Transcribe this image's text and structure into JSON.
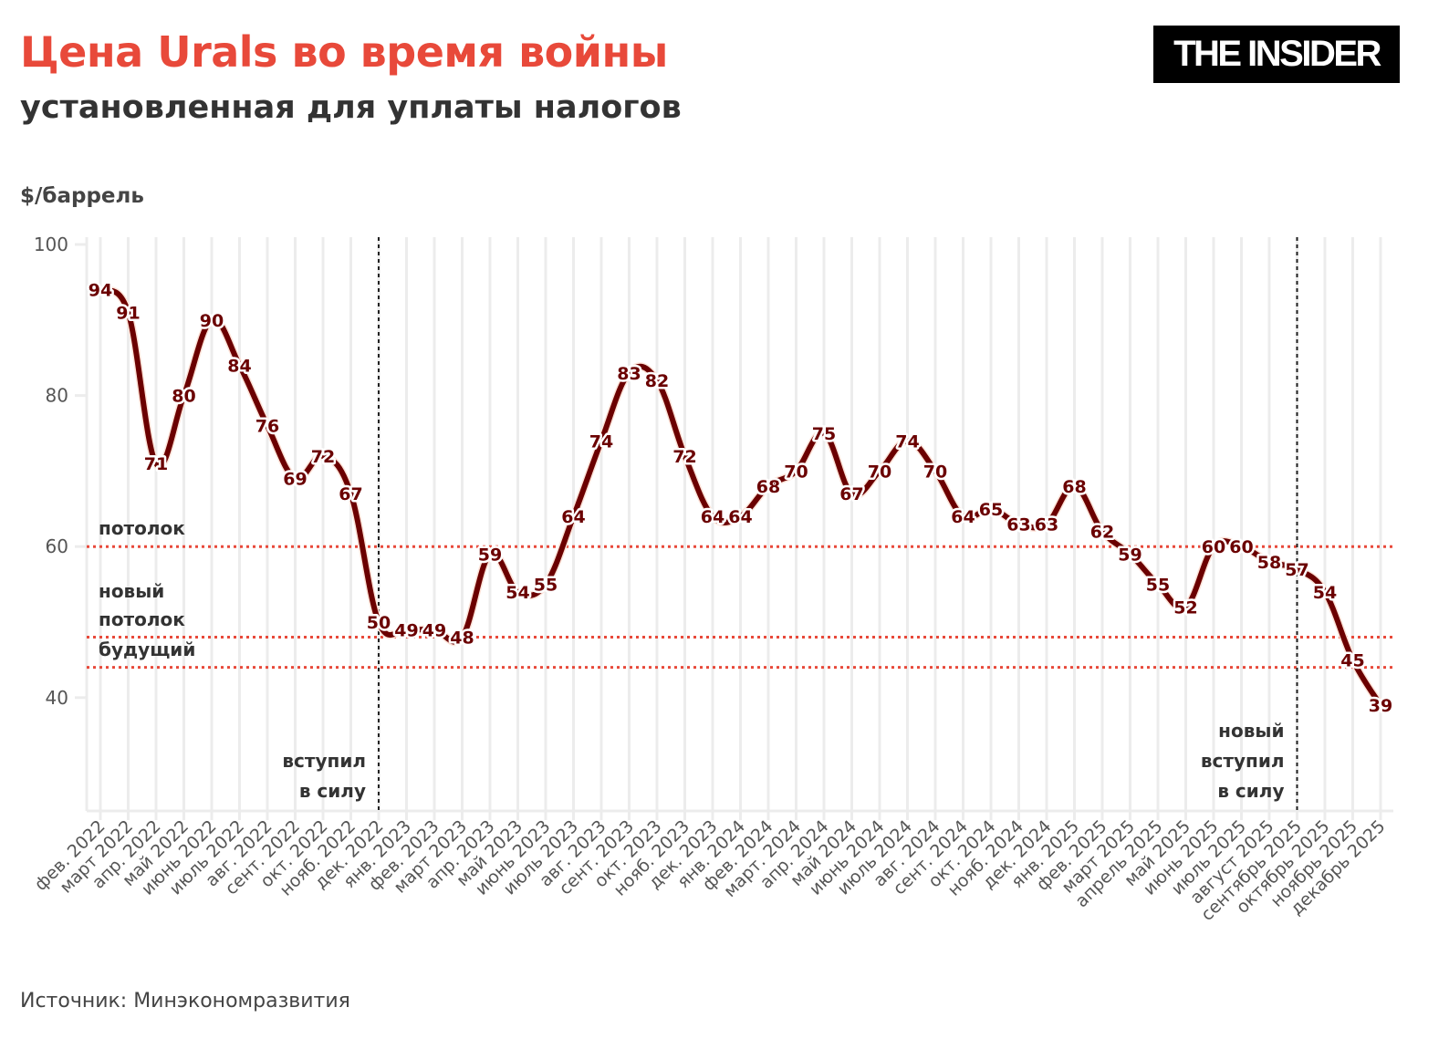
{
  "header": {
    "title": "Цена Urals во время войны",
    "subtitle": "установленная для уплаты налогов",
    "logo": "THE INSIDER"
  },
  "footer": {
    "source": "Источник: Минэкономразвития"
  },
  "chart_data": {
    "type": "line",
    "title": "Цена Urals во время войны",
    "subtitle": "установленная для уплаты налогов",
    "ylabel": "$/баррель",
    "xlabel": "",
    "ylim": [
      25,
      100
    ],
    "yticks": [
      40,
      60,
      80,
      100
    ],
    "grid": true,
    "line_color": "#6b0000",
    "categories": [
      "фев. 2022",
      "март 2022",
      "апр. 2022",
      "май 2022",
      "июнь 2022",
      "июль 2022",
      "авг. 2022",
      "сент. 2022",
      "окт. 2022",
      "нояб. 2022",
      "дек. 2022",
      "янв. 2023",
      "фев. 2023",
      "март 2023",
      "апр. 2023",
      "май 2023",
      "июнь 2023",
      "июль 2023",
      "авг. 2023",
      "сент. 2023",
      "окт. 2023",
      "нояб. 2023",
      "дек. 2023",
      "янв. 2024",
      "фев. 2024",
      "март. 2024",
      "апр. 2024",
      "май 2024",
      "июнь 2024",
      "июль 2024",
      "авг. 2024",
      "сент. 2024",
      "окт. 2024",
      "нояб. 2024",
      "дек. 2024",
      "янв. 2025",
      "фев. 2025",
      "март 2025",
      "апрель 2025",
      "май 2025",
      "июнь 2025",
      "июль 2025",
      "август 2025",
      "сентябрь 2025",
      "октябрь 2025",
      "ноябрь 2025",
      "декабрь 2025"
    ],
    "values": [
      94,
      91,
      71,
      80,
      90,
      84,
      76,
      69,
      72,
      67,
      50,
      49,
      49,
      48,
      59,
      54,
      55,
      64,
      74,
      83,
      82,
      72,
      64,
      64,
      68,
      70,
      75,
      67,
      70,
      74,
      70,
      64,
      65,
      63,
      63,
      68,
      62,
      59,
      55,
      52,
      60,
      60,
      58,
      57,
      54,
      45,
      39
    ],
    "reference_lines": [
      {
        "value": 60,
        "label": [
          "потолок"
        ],
        "color": "#e8493a"
      },
      {
        "value": 48,
        "label": [
          "новый",
          "потолок"
        ],
        "color": "#e8493a"
      },
      {
        "value": 44,
        "label": [
          "будущий"
        ],
        "color": "#e8493a"
      }
    ],
    "vertical_markers": [
      {
        "category": "дек. 2022",
        "label": [
          "вступил",
          "в силу"
        ]
      },
      {
        "category": "сентябрь 2025",
        "label": [
          "новый",
          "вступил",
          "в силу"
        ]
      }
    ]
  }
}
